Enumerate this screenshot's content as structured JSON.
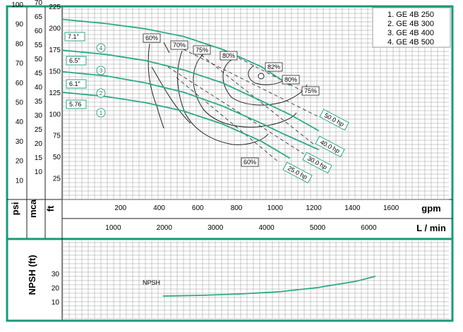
{
  "colors": {
    "frame": "#1a9a7a",
    "curve": "#2aaa8a",
    "grid": "#9a9a9a",
    "line": "#222222"
  },
  "legend": [
    "1. GE 4B 250",
    "2. GE 4B 300",
    "3. GE 4B 400",
    "4. GE 4B 500"
  ],
  "axis_titles": {
    "psi": "psi",
    "mca": "mca",
    "ft": "ft",
    "gpm": "gpm",
    "lmin": "L / min",
    "npsh": "NPSH (ft)"
  },
  "chart_data": [
    {
      "type": "line",
      "title": "",
      "xlabel": "gpm",
      "x2label": "L / min",
      "ylabel": "ft",
      "xlim": [
        0,
        2000
      ],
      "ylim": [
        0,
        230
      ],
      "x_ticks": [
        200,
        400,
        600,
        800,
        1000,
        1200,
        1400,
        1600
      ],
      "x2_ticks": [
        1000,
        2000,
        3000,
        4000,
        5000,
        6000
      ],
      "y_ticks_ft": [
        25,
        50,
        75,
        100,
        125,
        150,
        175,
        200,
        225
      ],
      "y_ticks_mca": [
        10,
        15,
        20,
        25,
        30,
        35,
        40,
        45,
        50,
        55,
        60,
        65,
        70
      ],
      "y_ticks_psi": [
        10,
        20,
        30,
        40,
        50,
        60,
        70,
        80,
        90,
        100
      ],
      "series": [
        {
          "name": "7.1\"",
          "marker": "4",
          "x": [
            0,
            200,
            400,
            600,
            800,
            1000,
            1150
          ],
          "y": [
            210,
            205,
            199,
            190,
            175,
            155,
            133
          ]
        },
        {
          "name": "6.5\"",
          "marker": "3",
          "x": [
            0,
            200,
            400,
            600,
            800,
            1000,
            1150,
            1300
          ],
          "y": [
            174,
            169,
            162,
            151,
            136,
            115,
            99,
            80
          ]
        },
        {
          "name": "6.1\"",
          "marker": "2",
          "x": [
            0,
            200,
            400,
            600,
            800,
            1000,
            1120,
            1300
          ],
          "y": [
            149,
            144,
            136,
            125,
            109,
            89,
            76,
            58
          ]
        },
        {
          "name": "5.76",
          "marker": "1",
          "x": [
            0,
            200,
            400,
            600,
            800,
            1000,
            1150
          ],
          "y": [
            125,
            120,
            113,
            103,
            88,
            68,
            48
          ]
        }
      ],
      "power_labels": [
        "50.0 hp",
        "40.0 hp",
        "30.0 hp",
        "25.0 hp"
      ],
      "efficiency_labels": [
        "60%",
        "70%",
        "75%",
        "80%",
        "82%",
        "80%",
        "75%",
        "60%"
      ]
    },
    {
      "type": "line",
      "title": "",
      "ylabel": "NPSH (ft)",
      "y_ticks": [
        10,
        20,
        30
      ],
      "series": [
        {
          "name": "NPSH",
          "x": [
            200,
            400,
            600,
            800,
            1000,
            1200,
            1300
          ],
          "y": [
            14,
            14.5,
            15.5,
            17,
            20,
            24.5,
            28
          ]
        }
      ]
    }
  ]
}
